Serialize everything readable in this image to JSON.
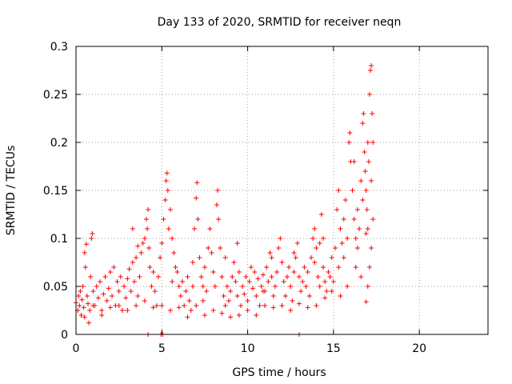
{
  "chart_data": {
    "type": "scatter",
    "title": "Day 133 of 2020, SRMTID for receiver neqn",
    "xlabel": "GPS time / hours",
    "ylabel": "SRMTID / TECUs",
    "xlim": [
      0,
      24
    ],
    "ylim": [
      0,
      0.3
    ],
    "xticks": [
      0,
      5,
      10,
      15,
      20
    ],
    "xtick_labels": [
      "0",
      "5",
      "10",
      "15",
      "20"
    ],
    "yticks": [
      0,
      0.05,
      0.1,
      0.15,
      0.2,
      0.25,
      0.3
    ],
    "ytick_labels": [
      "0",
      "0.05",
      "0.1",
      "0.15",
      "0.2",
      "0.25",
      "0.3"
    ],
    "grid": true,
    "marker": "+",
    "color": "#ff0000",
    "series": [
      {
        "name": "SRMTID",
        "points": [
          [
            0.0,
            0.033
          ],
          [
            0.1,
            0.025
          ],
          [
            0.15,
            0.04
          ],
          [
            0.2,
            0.03
          ],
          [
            0.25,
            0.045
          ],
          [
            0.3,
            0.02
          ],
          [
            0.35,
            0.036
          ],
          [
            0.4,
            0.05
          ],
          [
            0.45,
            0.028
          ],
          [
            0.5,
            0.085
          ],
          [
            0.55,
            0.07
          ],
          [
            0.6,
            0.094
          ],
          [
            0.65,
            0.04
          ],
          [
            0.7,
            0.032
          ],
          [
            0.75,
            0.012
          ],
          [
            0.8,
            0.025
          ],
          [
            0.85,
            0.06
          ],
          [
            0.9,
            0.1
          ],
          [
            0.95,
            0.105
          ],
          [
            1.0,
            0.045
          ],
          [
            1.1,
            0.03
          ],
          [
            1.2,
            0.05
          ],
          [
            1.3,
            0.038
          ],
          [
            1.4,
            0.055
          ],
          [
            1.5,
            0.02
          ],
          [
            1.6,
            0.042
          ],
          [
            1.7,
            0.06
          ],
          [
            1.8,
            0.035
          ],
          [
            1.9,
            0.048
          ],
          [
            2.0,
            0.065
          ],
          [
            2.1,
            0.04
          ],
          [
            2.2,
            0.07
          ],
          [
            2.3,
            0.03
          ],
          [
            2.4,
            0.055
          ],
          [
            2.5,
            0.045
          ],
          [
            2.6,
            0.06
          ],
          [
            2.7,
            0.025
          ],
          [
            2.8,
            0.05
          ],
          [
            2.9,
            0.038
          ],
          [
            3.0,
            0.058
          ],
          [
            3.1,
            0.068
          ],
          [
            3.2,
            0.045
          ],
          [
            3.3,
            0.075
          ],
          [
            3.4,
            0.055
          ],
          [
            3.5,
            0.08
          ],
          [
            3.6,
            0.04
          ],
          [
            3.7,
            0.06
          ],
          [
            3.8,
            0.085
          ],
          [
            3.9,
            0.095
          ],
          [
            4.0,
            0.1
          ],
          [
            4.1,
            0.12
          ],
          [
            4.15,
            0.11
          ],
          [
            4.2,
            0.13
          ],
          [
            4.25,
            0.09
          ],
          [
            4.3,
            0.07
          ],
          [
            4.4,
            0.05
          ],
          [
            4.5,
            0.065
          ],
          [
            4.6,
            0.045
          ],
          [
            4.7,
            0.03
          ],
          [
            4.8,
            0.06
          ],
          [
            4.9,
            0.08
          ],
          [
            5.0,
            0.095
          ],
          [
            5.1,
            0.12
          ],
          [
            5.2,
            0.14
          ],
          [
            5.25,
            0.16
          ],
          [
            5.3,
            0.168
          ],
          [
            5.35,
            0.15
          ],
          [
            5.4,
            0.11
          ],
          [
            5.5,
            0.13
          ],
          [
            5.6,
            0.1
          ],
          [
            5.7,
            0.085
          ],
          [
            5.8,
            0.07
          ],
          [
            5.9,
            0.065
          ],
          [
            6.0,
            0.05
          ],
          [
            6.1,
            0.04
          ],
          [
            6.2,
            0.055
          ],
          [
            6.3,
            0.03
          ],
          [
            6.4,
            0.045
          ],
          [
            6.5,
            0.06
          ],
          [
            6.6,
            0.035
          ],
          [
            6.7,
            0.025
          ],
          [
            6.8,
            0.05
          ],
          [
            6.9,
            0.11
          ],
          [
            7.0,
            0.142
          ],
          [
            7.05,
            0.158
          ],
          [
            7.1,
            0.12
          ],
          [
            7.2,
            0.08
          ],
          [
            7.3,
            0.06
          ],
          [
            7.4,
            0.05
          ],
          [
            7.5,
            0.07
          ],
          [
            7.6,
            0.045
          ],
          [
            7.7,
            0.09
          ],
          [
            7.8,
            0.11
          ],
          [
            7.9,
            0.085
          ],
          [
            8.0,
            0.065
          ],
          [
            8.1,
            0.05
          ],
          [
            8.2,
            0.135
          ],
          [
            8.25,
            0.15
          ],
          [
            8.3,
            0.12
          ],
          [
            8.4,
            0.09
          ],
          [
            8.5,
            0.06
          ],
          [
            8.6,
            0.04
          ],
          [
            8.7,
            0.03
          ],
          [
            8.8,
            0.05
          ],
          [
            8.9,
            0.035
          ],
          [
            9.0,
            0.045
          ],
          [
            9.1,
            0.06
          ],
          [
            9.2,
            0.075
          ],
          [
            9.3,
            0.055
          ],
          [
            9.4,
            0.04
          ],
          [
            9.5,
            0.065
          ],
          [
            9.6,
            0.03
          ],
          [
            9.7,
            0.05
          ],
          [
            9.8,
            0.042
          ],
          [
            9.9,
            0.06
          ],
          [
            10.0,
            0.035
          ],
          [
            10.1,
            0.055
          ],
          [
            10.2,
            0.07
          ],
          [
            10.3,
            0.048
          ],
          [
            10.4,
            0.065
          ],
          [
            10.5,
            0.04
          ],
          [
            10.6,
            0.058
          ],
          [
            10.7,
            0.03
          ],
          [
            10.8,
            0.05
          ],
          [
            10.9,
            0.062
          ],
          [
            11.0,
            0.045
          ],
          [
            11.1,
            0.07
          ],
          [
            11.2,
            0.055
          ],
          [
            11.3,
            0.085
          ],
          [
            11.4,
            0.06
          ],
          [
            11.5,
            0.04
          ],
          [
            11.6,
            0.05
          ],
          [
            11.7,
            0.065
          ],
          [
            11.8,
            0.09
          ],
          [
            11.9,
            0.1
          ],
          [
            12.0,
            0.075
          ],
          [
            12.1,
            0.055
          ],
          [
            12.2,
            0.04
          ],
          [
            12.3,
            0.06
          ],
          [
            12.4,
            0.07
          ],
          [
            12.5,
            0.05
          ],
          [
            12.6,
            0.035
          ],
          [
            12.7,
            0.065
          ],
          [
            12.8,
            0.08
          ],
          [
            12.9,
            0.095
          ],
          [
            13.0,
            0.06
          ],
          [
            13.1,
            0.045
          ],
          [
            13.2,
            0.055
          ],
          [
            13.3,
            0.07
          ],
          [
            13.4,
            0.05
          ],
          [
            13.5,
            0.065
          ],
          [
            13.6,
            0.04
          ],
          [
            13.7,
            0.08
          ],
          [
            13.8,
            0.1
          ],
          [
            13.9,
            0.11
          ],
          [
            14.0,
            0.09
          ],
          [
            14.1,
            0.06
          ],
          [
            14.2,
            0.05
          ],
          [
            14.3,
            0.125
          ],
          [
            14.4,
            0.07
          ],
          [
            14.5,
            0.055
          ],
          [
            14.6,
            0.045
          ],
          [
            14.7,
            0.065
          ],
          [
            14.8,
            0.06
          ],
          [
            14.9,
            0.08
          ],
          [
            15.0,
            0.055
          ],
          [
            15.1,
            0.09
          ],
          [
            15.2,
            0.13
          ],
          [
            15.3,
            0.15
          ],
          [
            15.4,
            0.11
          ],
          [
            15.5,
            0.095
          ],
          [
            15.6,
            0.12
          ],
          [
            15.7,
            0.14
          ],
          [
            15.8,
            0.1
          ],
          [
            15.9,
            0.2
          ],
          [
            15.95,
            0.21
          ],
          [
            16.0,
            0.18
          ],
          [
            16.1,
            0.15
          ],
          [
            16.2,
            0.12
          ],
          [
            16.3,
            0.1
          ],
          [
            16.4,
            0.13
          ],
          [
            16.5,
            0.11
          ],
          [
            16.6,
            0.16
          ],
          [
            16.7,
            0.22
          ],
          [
            16.75,
            0.23
          ],
          [
            16.8,
            0.19
          ],
          [
            16.85,
            0.17
          ],
          [
            16.9,
            0.15
          ],
          [
            16.95,
            0.13
          ],
          [
            17.0,
            0.11
          ],
          [
            17.05,
            0.18
          ],
          [
            17.1,
            0.25
          ],
          [
            17.15,
            0.275
          ],
          [
            17.2,
            0.28
          ],
          [
            17.25,
            0.23
          ],
          [
            17.3,
            0.2
          ],
          [
            17.3,
            0.12
          ],
          [
            17.2,
            0.09
          ],
          [
            17.1,
            0.07
          ],
          [
            17.0,
            0.05
          ],
          [
            16.9,
            0.034
          ],
          [
            16.6,
            0.06
          ],
          [
            16.3,
            0.07
          ],
          [
            15.8,
            0.05
          ],
          [
            15.4,
            0.04
          ],
          [
            14.9,
            0.045
          ],
          [
            14.5,
            0.038
          ],
          [
            14.0,
            0.03
          ],
          [
            13.5,
            0.028
          ],
          [
            13.0,
            0.032
          ],
          [
            12.5,
            0.025
          ],
          [
            12.0,
            0.03
          ],
          [
            11.5,
            0.028
          ],
          [
            11.0,
            0.03
          ],
          [
            10.5,
            0.02
          ],
          [
            10.0,
            0.025
          ],
          [
            9.5,
            0.02
          ],
          [
            9.0,
            0.018
          ],
          [
            8.5,
            0.022
          ],
          [
            8.0,
            0.025
          ],
          [
            7.5,
            0.02
          ],
          [
            7.0,
            0.03
          ],
          [
            6.5,
            0.018
          ],
          [
            6.0,
            0.028
          ],
          [
            5.5,
            0.025
          ],
          [
            5.0,
            0.03
          ],
          [
            4.5,
            0.028
          ],
          [
            4.0,
            0.035
          ],
          [
            3.5,
            0.03
          ],
          [
            3.0,
            0.025
          ],
          [
            2.5,
            0.03
          ],
          [
            2.0,
            0.028
          ],
          [
            1.5,
            0.025
          ],
          [
            1.0,
            0.03
          ],
          [
            0.5,
            0.018
          ],
          [
            4.2,
            0.0
          ],
          [
            4.95,
            0.0
          ],
          [
            5.05,
            0.0
          ],
          [
            13.0,
            0.0
          ],
          [
            3.3,
            0.11
          ],
          [
            3.6,
            0.092
          ],
          [
            5.6,
            0.055
          ],
          [
            6.8,
            0.075
          ],
          [
            8.7,
            0.08
          ],
          [
            9.4,
            0.095
          ],
          [
            12.7,
            0.085
          ],
          [
            14.2,
            0.095
          ],
          [
            15.6,
            0.08
          ],
          [
            16.4,
            0.09
          ],
          [
            16.7,
            0.14
          ],
          [
            17.0,
            0.2
          ],
          [
            17.2,
            0.16
          ],
          [
            16.2,
            0.18
          ],
          [
            16.9,
            0.105
          ],
          [
            15.3,
            0.07
          ],
          [
            14.4,
            0.1
          ],
          [
            13.9,
            0.075
          ],
          [
            11.4,
            0.08
          ],
          [
            10.9,
            0.045
          ],
          [
            7.4,
            0.035
          ]
        ]
      }
    ]
  }
}
